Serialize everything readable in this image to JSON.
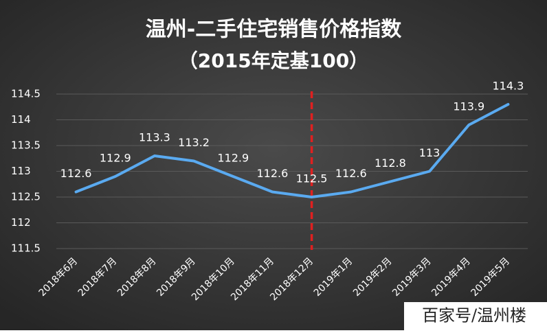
{
  "chart_data": {
    "type": "line",
    "title": "温州-二手住宅销售价格指数",
    "subtitle": "（2015年定基100）",
    "categories": [
      "2018年6月",
      "2018年7月",
      "2018年8月",
      "2018年9月",
      "2018年10月",
      "2018年11月",
      "2018年12月",
      "2019年1月",
      "2019年2月",
      "2019年3月",
      "2019年4月",
      "2019年5月"
    ],
    "series": [
      {
        "color": "#5aaaf0",
        "values": [
          112.6,
          112.9,
          113.3,
          113.2,
          112.9,
          112.6,
          112.5,
          112.6,
          112.8,
          113,
          113.9,
          114.3
        ]
      }
    ],
    "ylim": [
      111.5,
      114.5
    ],
    "yticks": [
      111.5,
      112,
      112.5,
      113,
      113.5,
      114,
      114.5
    ],
    "grid": true,
    "reference_line": {
      "category_index": 6,
      "color": "#e02020",
      "style": "dashed"
    },
    "watermark": "百家号/温州楼"
  }
}
